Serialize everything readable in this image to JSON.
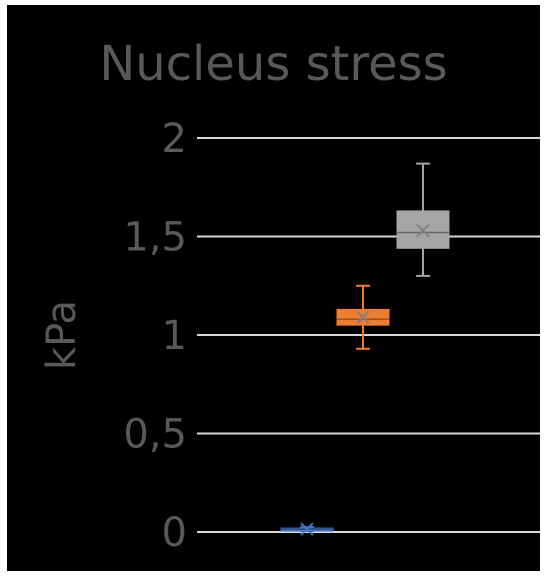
{
  "chart_data": {
    "type": "box",
    "title": "Nucleus stress",
    "ylabel": "kPa",
    "xlabel": "",
    "ylim": [
      0,
      2
    ],
    "y_ticks": [
      "0",
      "0,5",
      "1",
      "1,5",
      "2"
    ],
    "grid": true,
    "legend": "none",
    "series": [
      {
        "color": "#4472C4",
        "min": 0.005,
        "q1": 0.01,
        "median": 0.015,
        "q3": 0.02,
        "max": 0.025,
        "mean": 0.015
      },
      {
        "color": "#ED7D31",
        "min": 0.93,
        "q1": 1.05,
        "median": 1.08,
        "q3": 1.13,
        "max": 1.25,
        "mean": 1.09
      },
      {
        "color": "#A5A5A5",
        "min": 1.3,
        "q1": 1.44,
        "median": 1.52,
        "q3": 1.63,
        "max": 1.87,
        "mean": 1.53
      }
    ]
  }
}
